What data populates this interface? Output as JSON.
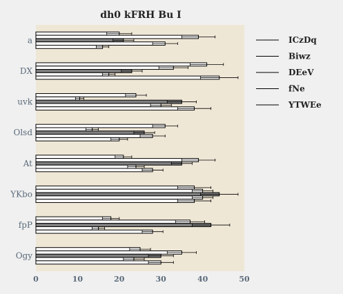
{
  "chart_data": {
    "type": "bar",
    "orientation": "horizontal",
    "title": "dh0 kFRH Bu I",
    "xlabel": "",
    "ylabel": "",
    "xlim": [
      0,
      50
    ],
    "xticks": [
      0,
      10,
      20,
      30,
      40,
      50
    ],
    "grid": false,
    "legend_position": "right",
    "plot_background": "#efe7d6",
    "categories": [
      "a",
      "DX",
      "uvk",
      "Olsd",
      "At",
      "YKbo",
      "fpP",
      "Ogy"
    ],
    "series": [
      {
        "name": "ICzDq",
        "color": "#ffffff",
        "values": [
          20,
          41,
          24,
          31,
          21,
          38,
          18,
          25
        ],
        "errors": [
          3,
          4,
          2.5,
          3,
          2,
          4,
          2,
          2.5
        ]
      },
      {
        "name": "Biwz",
        "color": "#ffffff",
        "values": [
          39,
          33,
          10.5,
          13.5,
          39,
          40,
          37,
          35
        ],
        "errors": [
          4,
          3.5,
          1,
          1.5,
          4,
          2.5,
          3.5,
          3.5
        ]
      },
      {
        "name": "DEeV",
        "color": "#808080",
        "values": [
          21,
          23,
          35,
          26,
          35,
          44,
          42,
          30
        ],
        "errors": [
          2.5,
          2.5,
          3.5,
          2.5,
          2.5,
          4.5,
          4.5,
          3
        ]
      },
      {
        "name": "fNe",
        "color": "#ffffff",
        "values": [
          31,
          17.5,
          30,
          28,
          24,
          40,
          15,
          23.5
        ],
        "errors": [
          3,
          1.5,
          2.5,
          3,
          2,
          2.5,
          1.5,
          2.5
        ]
      },
      {
        "name": "YTWEe",
        "color": "#ffffff",
        "values": [
          16,
          44,
          38,
          20,
          28,
          38,
          28,
          30
        ],
        "errors": [
          1.5,
          4.5,
          4,
          2,
          2.5,
          4,
          2.5,
          3
        ]
      }
    ]
  }
}
